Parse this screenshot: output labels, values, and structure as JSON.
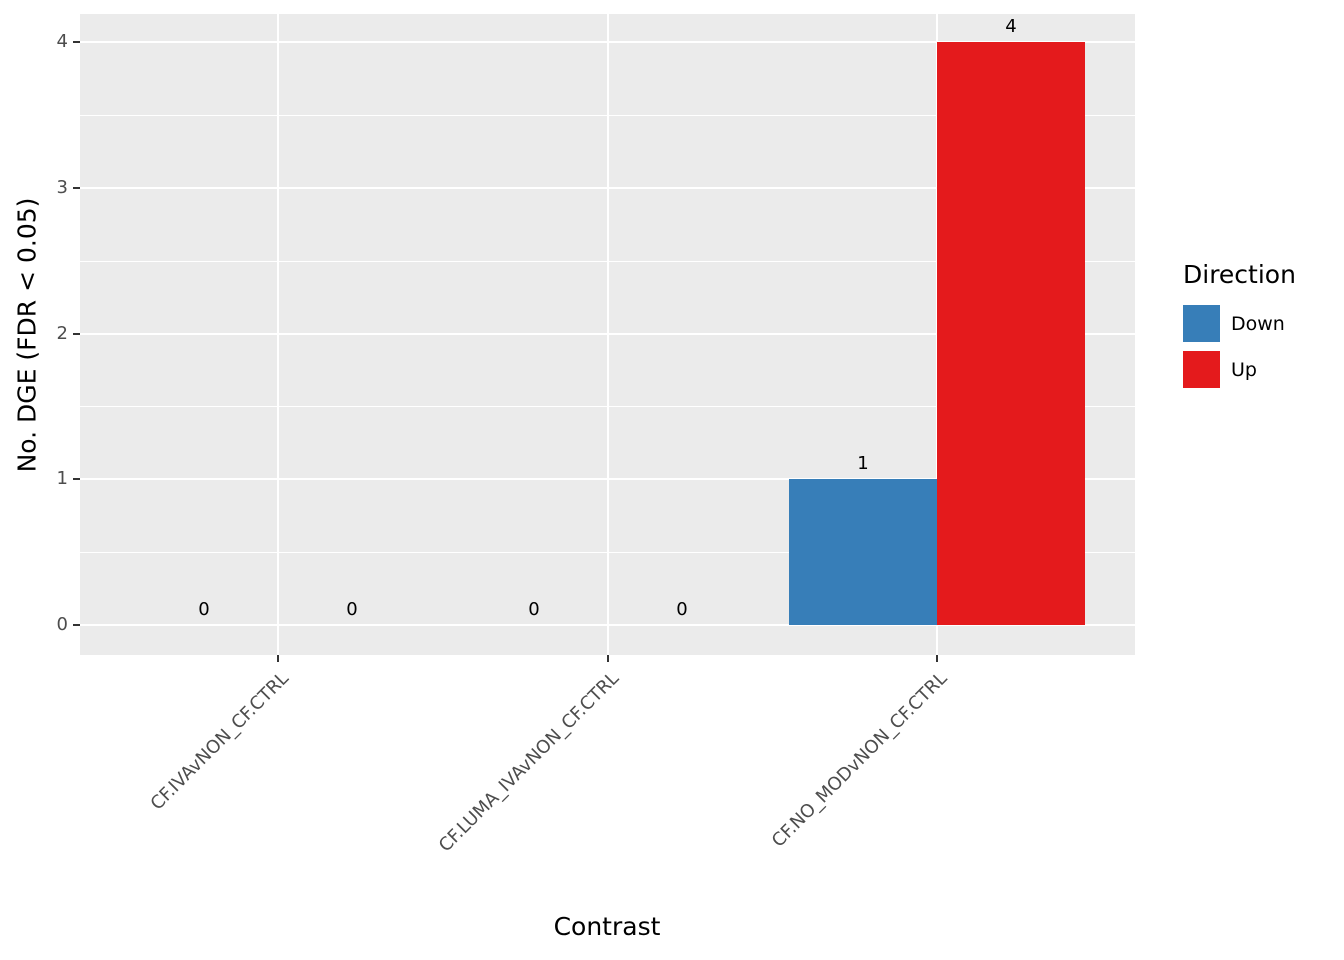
{
  "chart_data": {
    "type": "bar",
    "title": "",
    "xlabel": "Contrast",
    "ylabel": "No. DGE (FDR < 0.05)",
    "categories": [
      "CF.IVAvNON_CF.CTRL",
      "CF.LUMA_IVAvNON_CF.CTRL",
      "CF.NO_MODvNON_CF.CTRL"
    ],
    "series": [
      {
        "name": "Down",
        "color": "#377EB8",
        "values": [
          0,
          0,
          1
        ]
      },
      {
        "name": "Up",
        "color": "#E41A1C",
        "values": [
          0,
          0,
          4
        ]
      }
    ],
    "value_labels": [
      [
        "0",
        "0",
        "1"
      ],
      [
        "0",
        "0",
        "4"
      ]
    ],
    "ylim": [
      0,
      4
    ],
    "yticks": [
      0,
      1,
      2,
      3,
      4
    ],
    "legend_title": "Direction",
    "legend_position": "right",
    "grid": "on",
    "bar_style": "dodged",
    "panel_bg": "#EBEBEB",
    "grid_color": "#FFFFFF",
    "tick_text_color": "#4D4D4D"
  }
}
